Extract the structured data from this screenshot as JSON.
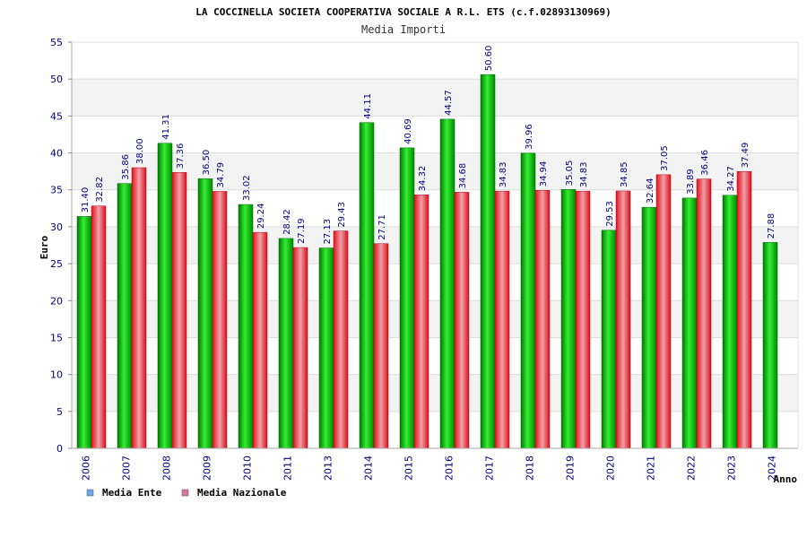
{
  "chart_data": {
    "type": "bar",
    "title": "LA COCCINELLA SOCIETA COOPERATIVA SOCIALE A R.L. ETS (c.f.02893130969)",
    "subtitle": "Media Importi",
    "xlabel": "Anno",
    "ylabel": "Euro",
    "ylim": [
      0,
      55
    ],
    "yticks": [
      0,
      5,
      10,
      15,
      20,
      25,
      30,
      35,
      40,
      45,
      50,
      55
    ],
    "grid": true,
    "legend_position": "bottom-left",
    "categories": [
      "2006",
      "2007",
      "2008",
      "2009",
      "2010",
      "2011",
      "2013",
      "2014",
      "2015",
      "2016",
      "2017",
      "2018",
      "2019",
      "2020",
      "2021",
      "2022",
      "2023",
      "2024"
    ],
    "series": [
      {
        "name": "Media Ente",
        "color": "#00b000",
        "legend_color": "#6aa8e8",
        "values": [
          31.4,
          35.86,
          41.31,
          36.5,
          33.02,
          28.42,
          27.13,
          44.11,
          40.69,
          44.57,
          50.6,
          39.96,
          35.05,
          29.53,
          32.64,
          33.89,
          34.27,
          27.88
        ],
        "labels": [
          "31.40",
          "35.86",
          "41.31",
          "36.50",
          "33.02",
          "28.42",
          "27.13",
          "44.11",
          "40.69",
          "44.57",
          "50.60",
          "39.96",
          "35.05",
          "29.53",
          "32.64",
          "33.89",
          "34.27",
          "27.88"
        ]
      },
      {
        "name": "Media Nazionale",
        "color": "#e8202a",
        "legend_color": "#d874a8",
        "values": [
          32.82,
          38.0,
          37.36,
          34.79,
          29.24,
          27.19,
          29.43,
          27.71,
          34.32,
          34.68,
          34.83,
          34.94,
          34.83,
          34.85,
          37.05,
          36.46,
          37.49,
          null
        ],
        "labels": [
          "32.82",
          "38.00",
          "37.36",
          "34.79",
          "29.24",
          "27.19",
          "29.43",
          "27.71",
          "34.32",
          "34.68",
          "34.83",
          "34.94",
          "34.83",
          "34.85",
          "37.05",
          "36.46",
          "37.49",
          ""
        ]
      }
    ]
  }
}
